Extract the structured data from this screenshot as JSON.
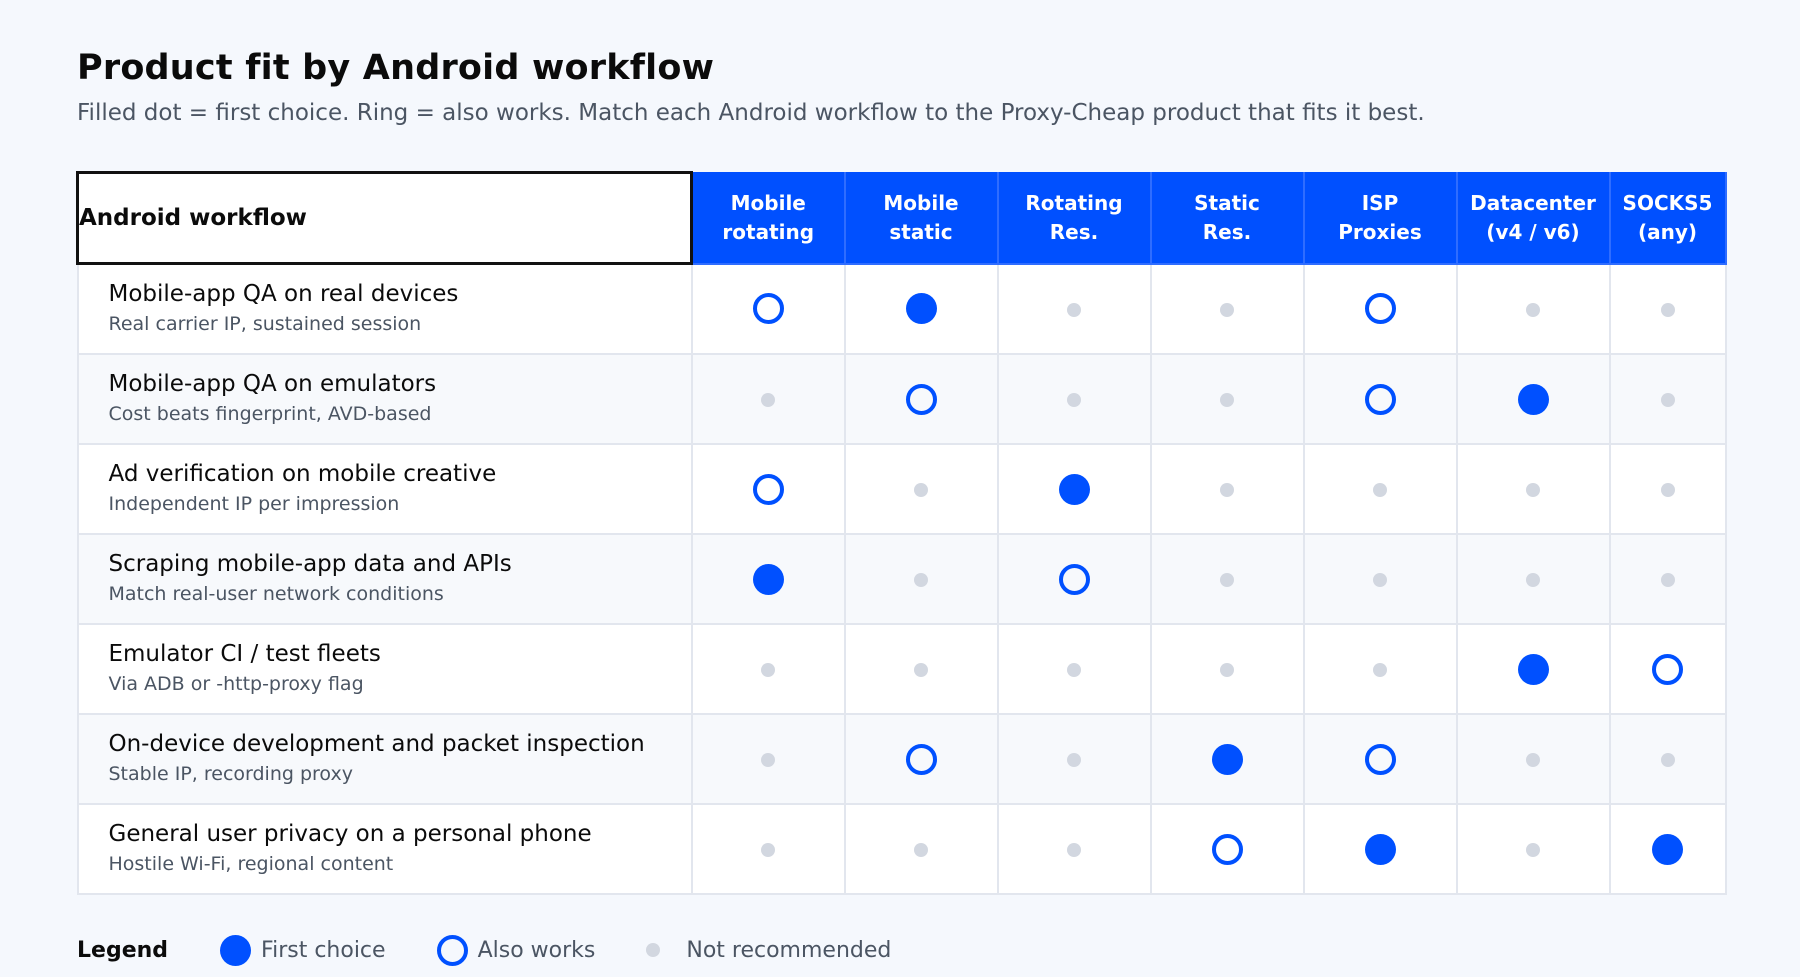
{
  "title": "Product fit by Android workflow",
  "subtitle": "Filled dot = first choice. Ring = also works. Match each Android workflow to the Proxy-Cheap product that fits it best.",
  "corner_label": "Android workflow",
  "colors": {
    "accent": "#0050ff",
    "not_recommended": "#d2d7e0"
  },
  "products": [
    {
      "line1": "Mobile",
      "line2": "rotating"
    },
    {
      "line1": "Mobile",
      "line2": "static"
    },
    {
      "line1": "Rotating",
      "line2": "Res."
    },
    {
      "line1": "Static",
      "line2": "Res."
    },
    {
      "line1": "ISP",
      "line2": "Proxies"
    },
    {
      "line1": "Datacenter",
      "line2": "(v4 / v6)"
    },
    {
      "line1": "SOCKS5",
      "line2": "(any)"
    }
  ],
  "workflows": [
    {
      "name": "Mobile-app QA on real devices",
      "note": "Real carrier IP, sustained session",
      "fit": [
        "also",
        "first",
        "not",
        "not",
        "also",
        "not",
        "not"
      ]
    },
    {
      "name": "Mobile-app QA on emulators",
      "note": "Cost beats fingerprint, AVD-based",
      "fit": [
        "not",
        "also",
        "not",
        "not",
        "also",
        "first",
        "not"
      ]
    },
    {
      "name": "Ad verification on mobile creative",
      "note": "Independent IP per impression",
      "fit": [
        "also",
        "not",
        "first",
        "not",
        "not",
        "not",
        "not"
      ]
    },
    {
      "name": "Scraping mobile-app data and APIs",
      "note": "Match real-user network conditions",
      "fit": [
        "first",
        "not",
        "also",
        "not",
        "not",
        "not",
        "not"
      ]
    },
    {
      "name": "Emulator CI / test fleets",
      "note": "Via ADB or -http-proxy flag",
      "fit": [
        "not",
        "not",
        "not",
        "not",
        "not",
        "first",
        "also"
      ]
    },
    {
      "name": "On-device development and packet inspection",
      "note": "Stable IP, recording proxy",
      "fit": [
        "not",
        "also",
        "not",
        "first",
        "also",
        "not",
        "not"
      ]
    },
    {
      "name": "General user privacy on a personal phone",
      "note": "Hostile Wi-Fi, regional content",
      "fit": [
        "not",
        "not",
        "not",
        "also",
        "first",
        "not",
        "first"
      ]
    }
  ],
  "legend": {
    "title": "Legend",
    "first": "First choice",
    "also": "Also works",
    "not": "Not recommended"
  }
}
